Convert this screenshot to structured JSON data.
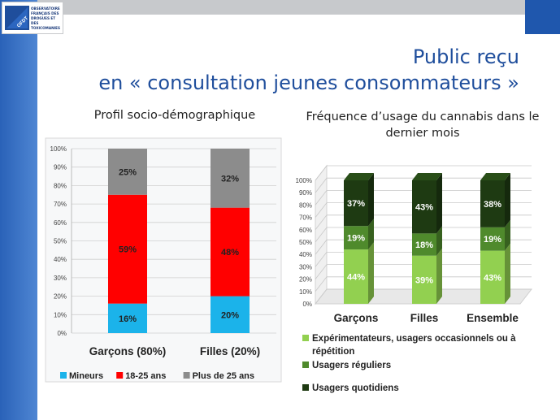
{
  "logo": {
    "text_lines": [
      "OBSERVATOIRE",
      "FRANÇAIS DES",
      "DROGUES ET DES",
      "TOXICOMANIES"
    ],
    "mark_text": "OFDT"
  },
  "title": {
    "line1": "Public reçu",
    "line2": "en « consultation jeunes consommateurs »"
  },
  "colors": {
    "side_bar": "#2a62b8",
    "title": "#1f4e9c",
    "mineurs": "#1bb3ea",
    "age_18_25": "#ff0000",
    "plus_25": "#8c8c8c",
    "experimentateurs": "#92d050",
    "reguliers": "#4f8a2c",
    "quotidiens": "#1e3a12"
  },
  "chart_data": [
    {
      "type": "bar",
      "stacked": true,
      "title": "Profil socio-démographique",
      "categories": [
        "Garçons (80%)",
        "Filles (20%)"
      ],
      "series": [
        {
          "name": "Mineurs",
          "values": [
            16,
            20
          ],
          "labels": [
            "16%",
            "20%"
          ]
        },
        {
          "name": "18-25 ans",
          "values": [
            59,
            48
          ],
          "labels": [
            "59%",
            "48%"
          ]
        },
        {
          "name": "Plus de 25 ans",
          "values": [
            25,
            32
          ],
          "labels": [
            "25%",
            "32%"
          ]
        }
      ],
      "ylim": [
        0,
        100
      ],
      "yticks": [
        "0%",
        "10%",
        "20%",
        "30%",
        "40%",
        "50%",
        "60%",
        "70%",
        "80%",
        "90%",
        "100%"
      ],
      "legend": "bottom"
    },
    {
      "type": "bar",
      "stacked": true,
      "three_d": true,
      "title": "Fréquence d’usage du cannabis dans le dernier mois",
      "categories": [
        "Garçons",
        "Filles",
        "Ensemble"
      ],
      "series": [
        {
          "name": "Expérimentateurs, usagers occasionnels ou à répétition",
          "values": [
            44,
            39,
            43
          ],
          "labels": [
            "44%",
            "39%",
            "43%"
          ]
        },
        {
          "name": "Usagers réguliers",
          "values": [
            19,
            18,
            19
          ],
          "labels": [
            "19%",
            "18%",
            "19%"
          ]
        },
        {
          "name": "Usagers quotidiens",
          "values": [
            37,
            43,
            38
          ],
          "labels": [
            "37%",
            "43%",
            "38%"
          ]
        }
      ],
      "ylim": [
        0,
        100
      ],
      "yticks": [
        "0%",
        "10%",
        "20%",
        "30%",
        "40%",
        "50%",
        "60%",
        "70%",
        "80%",
        "90%",
        "100%"
      ],
      "legend": "bottom"
    }
  ]
}
